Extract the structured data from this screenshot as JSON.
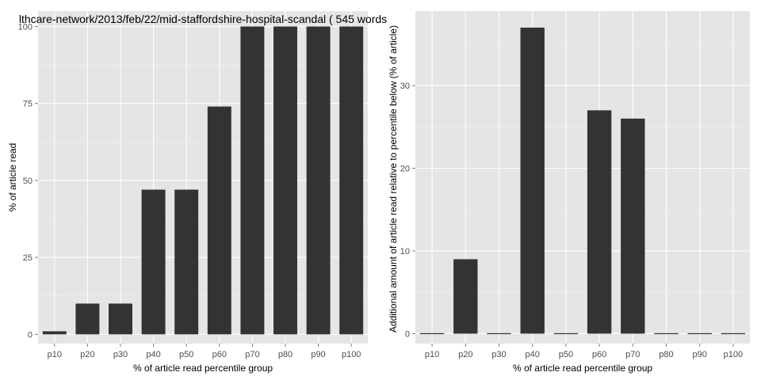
{
  "colors": {
    "panel_background": "#e5e5e5",
    "grid_major": "#ffffff",
    "grid_minor": "#f2f2f2",
    "bar_fill": "#333333",
    "tick_text": "#4d4d4d"
  },
  "chart_data": [
    {
      "type": "bar",
      "title": "lthcare-network/2013/feb/22/mid-staffordshire-hospital-scandal ( 545 words",
      "xlabel": "% of article read percentile group",
      "ylabel": "% of article read",
      "categories": [
        "p10",
        "p20",
        "p30",
        "p40",
        "p50",
        "p60",
        "p70",
        "p80",
        "p90",
        "p100"
      ],
      "values": [
        1,
        10,
        10,
        47,
        47,
        74,
        100,
        100,
        100,
        100
      ],
      "ylim": [
        -3,
        105
      ],
      "yticks": [
        0,
        25,
        50,
        75,
        100
      ],
      "grid": true
    },
    {
      "type": "bar",
      "title": "",
      "xlabel": "% of article read percentile group",
      "ylabel": "Additional amount of article read relative to percentile below (% of article)",
      "categories": [
        "p10",
        "p20",
        "p30",
        "p40",
        "p50",
        "p60",
        "p70",
        "p80",
        "p90",
        "p100"
      ],
      "values": [
        0,
        9,
        0,
        37,
        0,
        27,
        26,
        0,
        0,
        0
      ],
      "ylim": [
        -1.2,
        39
      ],
      "yticks": [
        0,
        10,
        20,
        30
      ],
      "grid": true
    }
  ]
}
